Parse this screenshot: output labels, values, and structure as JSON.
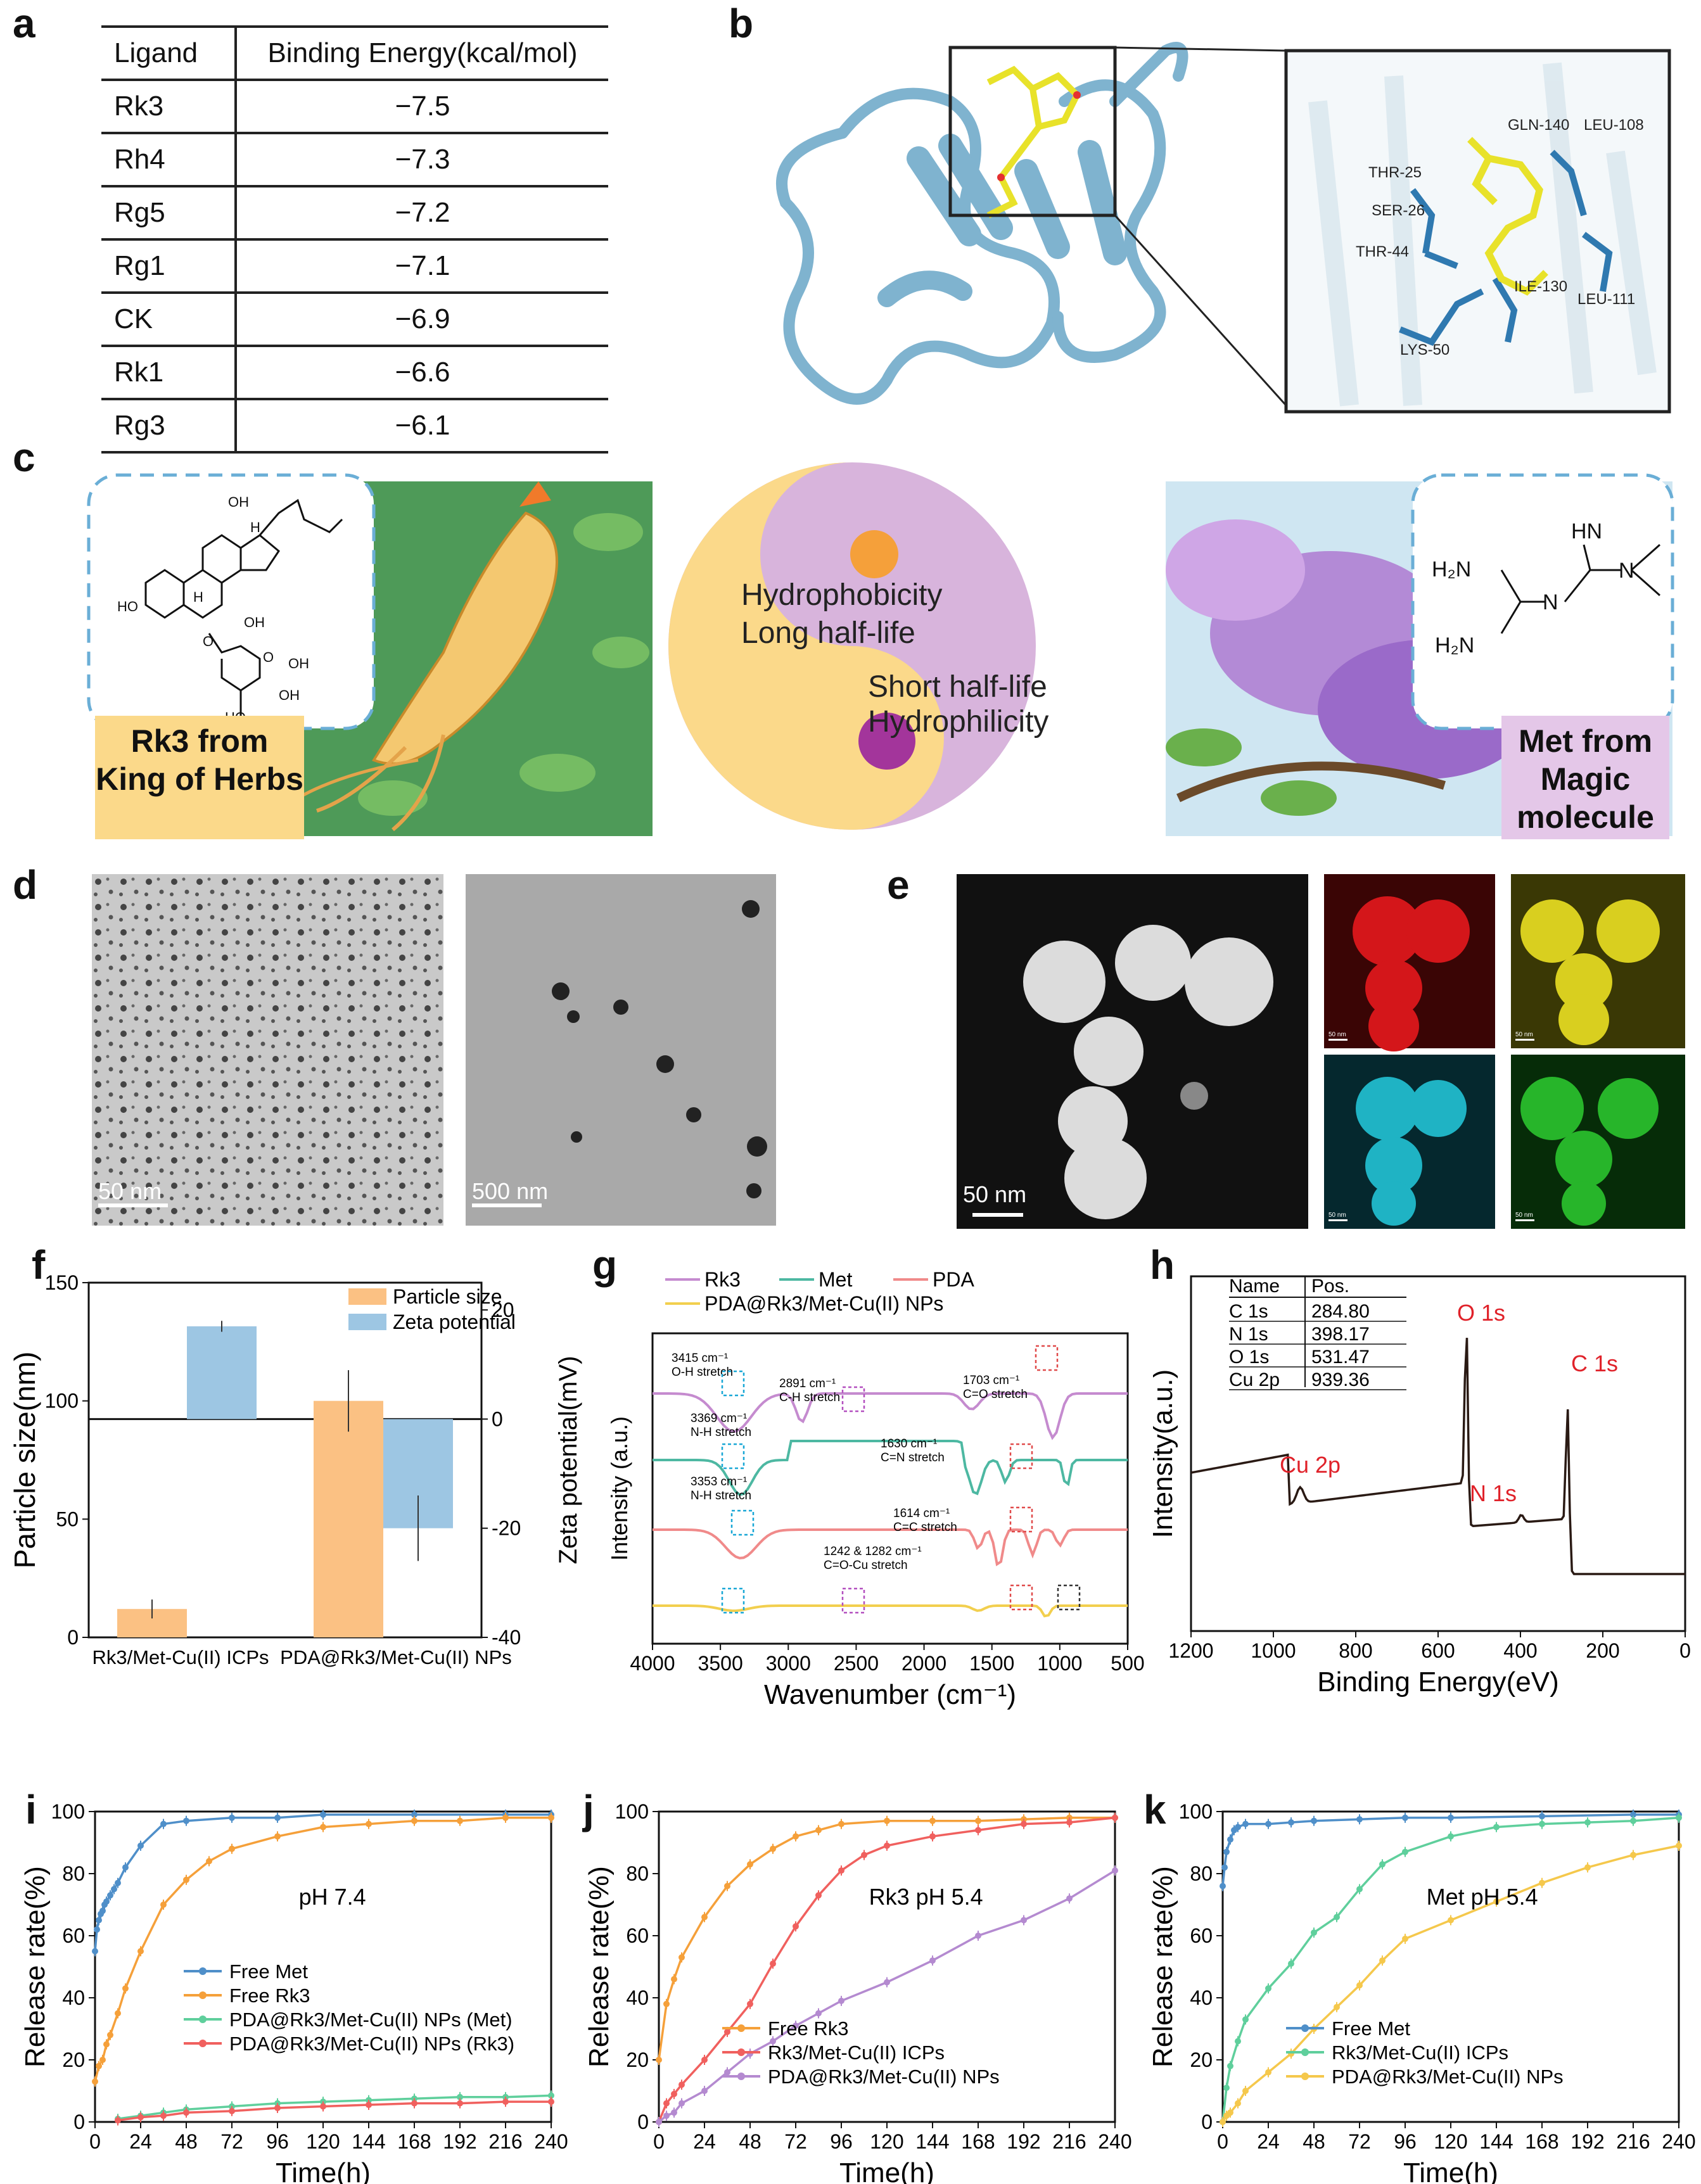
{
  "panels": {
    "a": "a",
    "b": "b",
    "c": "c",
    "d": "d",
    "e": "e",
    "f": "f",
    "g": "g",
    "h": "h",
    "i": "i",
    "j": "j",
    "k": "k"
  },
  "table_a": {
    "headers": [
      "Ligand",
      "Binding Energy(kcal/mol)"
    ],
    "rows": [
      {
        "ligand": "Rk3",
        "energy": "−7.5"
      },
      {
        "ligand": "Rh4",
        "energy": "−7.3"
      },
      {
        "ligand": "Rg5",
        "energy": "−7.2"
      },
      {
        "ligand": "Rg1",
        "energy": "−7.1"
      },
      {
        "ligand": "CK",
        "energy": "−6.9"
      },
      {
        "ligand": "Rk1",
        "energy": "−6.6"
      },
      {
        "ligand": "Rg3",
        "energy": "−6.1"
      }
    ]
  },
  "panel_b": {
    "residues": [
      "GLN-140",
      "LEU-108",
      "THR-25",
      "SER-26",
      "THR-44",
      "ILE-130",
      "LEU-111",
      "LYS-50"
    ],
    "colors": {
      "protein": "#7fb3cf",
      "ligand": "#e8e22a",
      "residue": "#2f79b0"
    }
  },
  "panel_c": {
    "left_label": "Rk3 from King of Herbs",
    "right_label": "Met from Magic molecule",
    "yang_text": [
      "Hydrophobicity",
      "Long half-life"
    ],
    "yin_text": [
      "Short half-life",
      "Hydrophilicity"
    ],
    "met_atoms": [
      "HN",
      "H₂N",
      "N",
      "H₂N",
      "N"
    ],
    "rk3_atoms": [
      "OH",
      "H",
      "HO",
      "H",
      "O",
      "OH",
      "O",
      "OH",
      "OH",
      "HO"
    ],
    "colors": {
      "yang": "#fbd98a",
      "yin": "#d8b4dc",
      "left_label_bg": "#fbd98a",
      "right_label_bg": "#e4c7e8",
      "dash": "#6aaed6"
    }
  },
  "panel_d": {
    "scale_left": "50 nm",
    "scale_right": "500 nm"
  },
  "panel_e": {
    "scale_main": "50 nm",
    "map_scales": [
      "50 nm",
      "50 nm",
      "50 nm",
      "50 nm"
    ],
    "map_colors": [
      "#d4161a",
      "#d9cf1f",
      "#1fb3c4",
      "#27b52a"
    ]
  },
  "chart_data": [
    {
      "id": "f",
      "type": "bar",
      "categories": [
        "Rk3/Met-Cu(II) ICPs",
        "PDA@Rk3/Met-Cu(II) NPs"
      ],
      "series": [
        {
          "name": "Particle size",
          "values": [
            12,
            100
          ],
          "errors": [
            4,
            13
          ],
          "color": "#fbc183"
        },
        {
          "name": "Zeta potential",
          "values": [
            17,
            -20
          ],
          "errors": [
            1,
            6
          ],
          "color": "#9dc6e3"
        }
      ],
      "ylabel": "Particle size(nm)",
      "y2label": "Zeta potential(mV)",
      "ylim": [
        0,
        150
      ],
      "y2lim": [
        -40,
        25
      ],
      "yticks": [
        "0",
        "50",
        "100",
        "150"
      ],
      "y2ticks": [
        "-40",
        "-20",
        "0",
        "20"
      ]
    },
    {
      "id": "g",
      "type": "line",
      "xlabel": "Wavenumber (cm⁻¹)",
      "ylabel": "Intensity (a.u.)",
      "xlim": [
        4000,
        500
      ],
      "xticks": [
        "4000",
        "3500",
        "3000",
        "2500",
        "2000",
        "1500",
        "1000",
        "500"
      ],
      "series": [
        {
          "name": "Rk3",
          "color": "#c58bcf"
        },
        {
          "name": "Met",
          "color": "#4db8a2"
        },
        {
          "name": "PDA",
          "color": "#f08a8a"
        },
        {
          "name": "PDA@Rk3/Met-Cu(II) NPs",
          "color": "#f2cf4e"
        }
      ],
      "annotations": [
        {
          "text": "3415 cm⁻¹",
          "sub": "O-H stretch"
        },
        {
          "text": "2891 cm⁻¹",
          "sub": "C-H stretch"
        },
        {
          "text": "1703 cm⁻¹",
          "sub": "C=O stretch"
        },
        {
          "text": "3369 cm⁻¹",
          "sub": "N-H stretch"
        },
        {
          "text": "1630 cm⁻¹",
          "sub": "C=N stretch"
        },
        {
          "text": "3353 cm⁻¹",
          "sub": "N-H stretch"
        },
        {
          "text": "1614 cm⁻¹",
          "sub": "C=C stretch"
        },
        {
          "text": "1242 & 1282 cm⁻¹",
          "sub": "C=O-Cu stretch"
        }
      ]
    },
    {
      "id": "h",
      "type": "line",
      "xlabel": "Binding Energy(eV)",
      "ylabel": "Intensity(a.u.)",
      "xlim": [
        1200,
        0
      ],
      "xticks": [
        "1200",
        "1000",
        "800",
        "600",
        "400",
        "200",
        "0"
      ],
      "peaks": [
        "O 1s",
        "C 1s",
        "Cu 2p",
        "N 1s"
      ],
      "table": {
        "headers": [
          "Name",
          "Pos."
        ],
        "rows": [
          [
            "C 1s",
            "284.80"
          ],
          [
            "N 1s",
            "398.17"
          ],
          [
            "O 1s",
            "531.47"
          ],
          [
            "Cu 2p",
            "939.36"
          ]
        ]
      }
    },
    {
      "id": "i",
      "type": "line",
      "title": "pH 7.4",
      "xlabel": "Time(h)",
      "ylabel": "Release rate(%)",
      "xlim": [
        0,
        240
      ],
      "ylim": [
        0,
        100
      ],
      "xticks": [
        "0",
        "24",
        "48",
        "72",
        "96",
        "120",
        "144",
        "168",
        "192",
        "216",
        "240"
      ],
      "yticks": [
        "0",
        "20",
        "40",
        "60",
        "80",
        "100"
      ],
      "series": [
        {
          "name": "Free Met",
          "color": "#4f8fc9",
          "x": [
            0,
            1,
            2,
            3,
            4,
            5,
            6,
            8,
            10,
            12,
            16,
            24,
            36,
            48,
            72,
            96,
            120,
            168,
            216,
            240
          ],
          "y": [
            55,
            62,
            65,
            67,
            68,
            70,
            71,
            73,
            75,
            77,
            82,
            89,
            96,
            97,
            98,
            98,
            99,
            99,
            99,
            99
          ]
        },
        {
          "name": "Free Rk3",
          "color": "#f5a03a",
          "x": [
            0,
            2,
            4,
            6,
            8,
            12,
            16,
            24,
            36,
            48,
            60,
            72,
            96,
            120,
            144,
            168,
            192,
            216,
            240
          ],
          "y": [
            13,
            18,
            20,
            25,
            28,
            35,
            43,
            55,
            70,
            78,
            84,
            88,
            92,
            95,
            96,
            97,
            97,
            98,
            98
          ]
        },
        {
          "name": "PDA@Rk3/Met-Cu(II) NPs (Met)",
          "color": "#5fcf9c",
          "x": [
            12,
            24,
            36,
            48,
            72,
            96,
            120,
            144,
            168,
            192,
            216,
            240
          ],
          "y": [
            1,
            2,
            3,
            4,
            5,
            6,
            6.5,
            7,
            7.5,
            8,
            8,
            8.5
          ]
        },
        {
          "name": "PDA@Rk3/Met-Cu(II) NPs (Rk3)",
          "color": "#f0605e",
          "x": [
            12,
            24,
            36,
            48,
            72,
            96,
            120,
            144,
            168,
            192,
            216,
            240
          ],
          "y": [
            0.5,
            1.5,
            2,
            3,
            3.5,
            4.5,
            5,
            5.5,
            6,
            6,
            6.5,
            6.5
          ]
        }
      ]
    },
    {
      "id": "j",
      "type": "line",
      "title": "Rk3 pH 5.4",
      "xlabel": "Time(h)",
      "ylabel": "Release rate(%)",
      "xlim": [
        0,
        240
      ],
      "ylim": [
        0,
        100
      ],
      "xticks": [
        "0",
        "24",
        "48",
        "72",
        "96",
        "120",
        "144",
        "168",
        "192",
        "216",
        "240"
      ],
      "yticks": [
        "0",
        "20",
        "40",
        "60",
        "80",
        "100"
      ],
      "series": [
        {
          "name": "Free Rk3",
          "color": "#f5a03a",
          "x": [
            0,
            4,
            8,
            12,
            24,
            36,
            48,
            60,
            72,
            84,
            96,
            120,
            144,
            168,
            192,
            216,
            240
          ],
          "y": [
            20,
            38,
            46,
            53,
            66,
            76,
            83,
            88,
            92,
            94,
            96,
            97,
            97,
            97,
            97.5,
            98,
            98
          ]
        },
        {
          "name": "Rk3/Met-Cu(II) ICPs",
          "color": "#f0605e",
          "x": [
            0,
            4,
            8,
            12,
            24,
            36,
            48,
            60,
            72,
            84,
            96,
            108,
            120,
            144,
            168,
            192,
            216,
            240
          ],
          "y": [
            0,
            6,
            9,
            12,
            20,
            29,
            38,
            51,
            63,
            73,
            81,
            86,
            89,
            92,
            94,
            96,
            96.5,
            98
          ]
        },
        {
          "name": "PDA@Rk3/Met-Cu(II) NPs",
          "color": "#b48ad0",
          "x": [
            0,
            4,
            8,
            12,
            24,
            36,
            48,
            60,
            72,
            84,
            96,
            120,
            144,
            168,
            192,
            216,
            240
          ],
          "y": [
            0,
            2,
            3,
            6,
            10,
            16,
            22,
            26,
            31,
            35,
            39,
            45,
            52,
            60,
            65,
            72,
            81
          ]
        }
      ]
    },
    {
      "id": "k",
      "type": "line",
      "title": "Met pH 5.4",
      "xlabel": "Time(h)",
      "ylabel": "Release rate(%)",
      "xlim": [
        0,
        240
      ],
      "ylim": [
        0,
        100
      ],
      "xticks": [
        "0",
        "24",
        "48",
        "72",
        "96",
        "120",
        "144",
        "168",
        "192",
        "216",
        "240"
      ],
      "yticks": [
        "0",
        "20",
        "40",
        "60",
        "80",
        "100"
      ],
      "series": [
        {
          "name": "Free Met",
          "color": "#4f8fc9",
          "x": [
            0,
            1,
            2,
            4,
            6,
            8,
            12,
            24,
            36,
            48,
            72,
            96,
            120,
            168,
            216,
            240
          ],
          "y": [
            76,
            82,
            87,
            91,
            94,
            95,
            96,
            96,
            96.5,
            97,
            97.5,
            98,
            98,
            98.5,
            99,
            99
          ]
        },
        {
          "name": "Rk3/Met-Cu(II) ICPs",
          "color": "#5fcf9c",
          "x": [
            0,
            2,
            4,
            8,
            12,
            24,
            36,
            48,
            60,
            72,
            84,
            96,
            120,
            144,
            168,
            192,
            216,
            240
          ],
          "y": [
            0,
            11,
            18,
            26,
            33,
            43,
            51,
            61,
            66,
            75,
            83,
            87,
            92,
            95,
            96,
            96.5,
            97,
            98
          ]
        },
        {
          "name": "PDA@Rk3/Met-Cu(II) NPs",
          "color": "#f5c84c",
          "x": [
            0,
            2,
            4,
            8,
            12,
            24,
            36,
            48,
            60,
            72,
            84,
            96,
            120,
            144,
            168,
            192,
            216,
            240
          ],
          "y": [
            0,
            2,
            3,
            6,
            10,
            16,
            22,
            30,
            37,
            44,
            52,
            59,
            65,
            71,
            77,
            82,
            86,
            89
          ]
        }
      ]
    }
  ]
}
